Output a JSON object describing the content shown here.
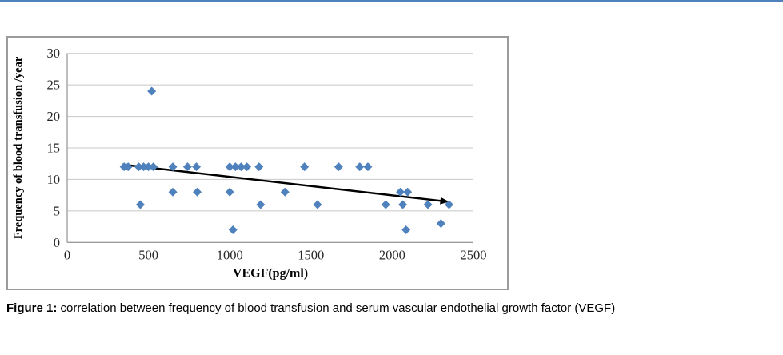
{
  "page": {
    "top_rule_color": "#4f81bd",
    "background": "#ffffff"
  },
  "figure_caption": {
    "label": "Figure 1:",
    "text": " correlation between frequency of blood transfusion and serum vascular endothelial growth factor (VEGF)"
  },
  "chart_data": {
    "type": "scatter",
    "title": "",
    "xlabel": "VEGF(pg/ml)",
    "ylabel": "Frequency of  blood  transfusion /year",
    "xlim": [
      0,
      2500
    ],
    "ylim": [
      0,
      30
    ],
    "x_ticks": [
      0,
      500,
      1000,
      1500,
      2000,
      2500
    ],
    "y_ticks": [
      0,
      5,
      10,
      15,
      20,
      25,
      30
    ],
    "grid": "horizontal-only",
    "legend": "none",
    "marker": {
      "shape": "diamond",
      "color": "#4f81bd",
      "size": 11
    },
    "colors": {
      "gridline": "#c8c8c8",
      "axis_line": "#9b9b9b",
      "tick_label": "#262626",
      "trend_line": "#000000"
    },
    "points": [
      [
        520,
        24
      ],
      [
        350,
        12
      ],
      [
        375,
        12
      ],
      [
        440,
        12
      ],
      [
        470,
        12
      ],
      [
        500,
        12
      ],
      [
        530,
        12
      ],
      [
        650,
        12
      ],
      [
        740,
        12
      ],
      [
        795,
        12
      ],
      [
        1000,
        12
      ],
      [
        1035,
        12
      ],
      [
        1070,
        12
      ],
      [
        1105,
        12
      ],
      [
        1180,
        12
      ],
      [
        1460,
        12
      ],
      [
        1670,
        12
      ],
      [
        1800,
        12
      ],
      [
        1850,
        12
      ],
      [
        650,
        8
      ],
      [
        800,
        8
      ],
      [
        1000,
        8
      ],
      [
        1340,
        8
      ],
      [
        2050,
        8
      ],
      [
        2095,
        8
      ],
      [
        450,
        6
      ],
      [
        1190,
        6
      ],
      [
        1540,
        6
      ],
      [
        1960,
        6
      ],
      [
        2065,
        6
      ],
      [
        2220,
        6
      ],
      [
        2350,
        6
      ],
      [
        2300,
        3
      ],
      [
        1020,
        2
      ],
      [
        2085,
        2
      ]
    ],
    "trendline": {
      "x1": 340,
      "y1": 12.35,
      "x2": 2350,
      "y2": 6.45,
      "color": "#000000",
      "width": 2.5,
      "arrow_end": true
    }
  }
}
